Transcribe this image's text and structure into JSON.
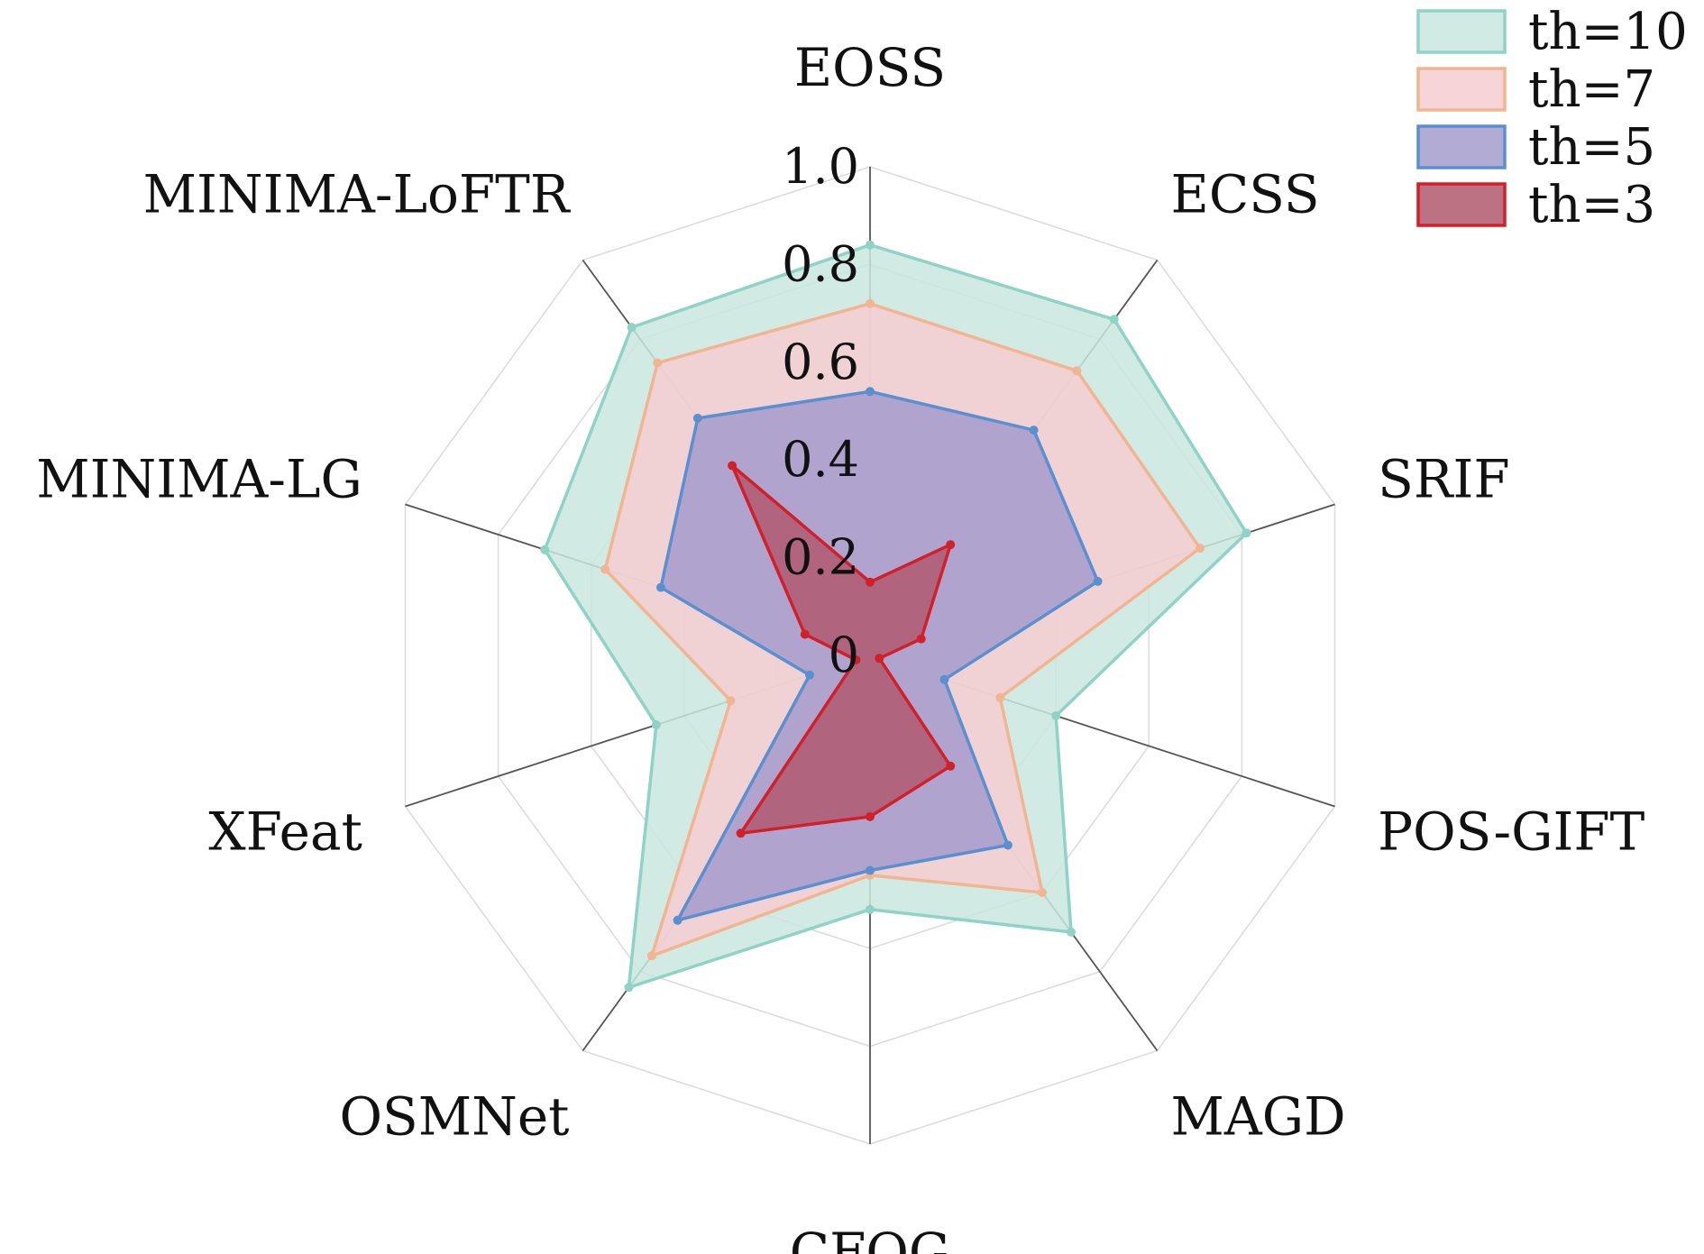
{
  "chart_data": {
    "type": "radar",
    "axes": [
      "EOSS",
      "ECSS",
      "SRIF",
      "POS-GIFT",
      "MAGD",
      "CFOG",
      "OSMNet",
      "XFeat",
      "MINIMA-LG",
      "MINIMA-LoFTR"
    ],
    "rlim": [
      0,
      1.0
    ],
    "ticks": [
      0,
      0.2,
      0.4,
      0.6,
      0.8,
      1.0
    ],
    "tick_labels": [
      "0",
      "0.2",
      "0.4",
      "0.6",
      "0.8",
      "1.0"
    ],
    "grid": true,
    "legend_position": "top-right",
    "series": [
      {
        "name": "th=10",
        "values": [
          0.84,
          0.85,
          0.81,
          0.4,
          0.7,
          0.52,
          0.84,
          0.46,
          0.7,
          0.83
        ],
        "fill": "#c9e6df",
        "stroke": "#8fd3c6"
      },
      {
        "name": "th=7",
        "values": [
          0.72,
          0.72,
          0.71,
          0.28,
          0.6,
          0.45,
          0.76,
          0.3,
          0.57,
          0.74
        ],
        "fill": "#f6cdd1",
        "stroke": "#f2b591"
      },
      {
        "name": "th=5",
        "values": [
          0.54,
          0.57,
          0.49,
          0.16,
          0.48,
          0.44,
          0.67,
          0.13,
          0.45,
          0.6
        ],
        "fill": "#a49ccd",
        "stroke": "#5a8fd0"
      },
      {
        "name": "th=3",
        "values": [
          0.15,
          0.28,
          0.11,
          0.02,
          0.28,
          0.33,
          0.45,
          0.03,
          0.14,
          0.48
        ],
        "fill": "#b2596e",
        "stroke": "#d0202a"
      }
    ]
  }
}
